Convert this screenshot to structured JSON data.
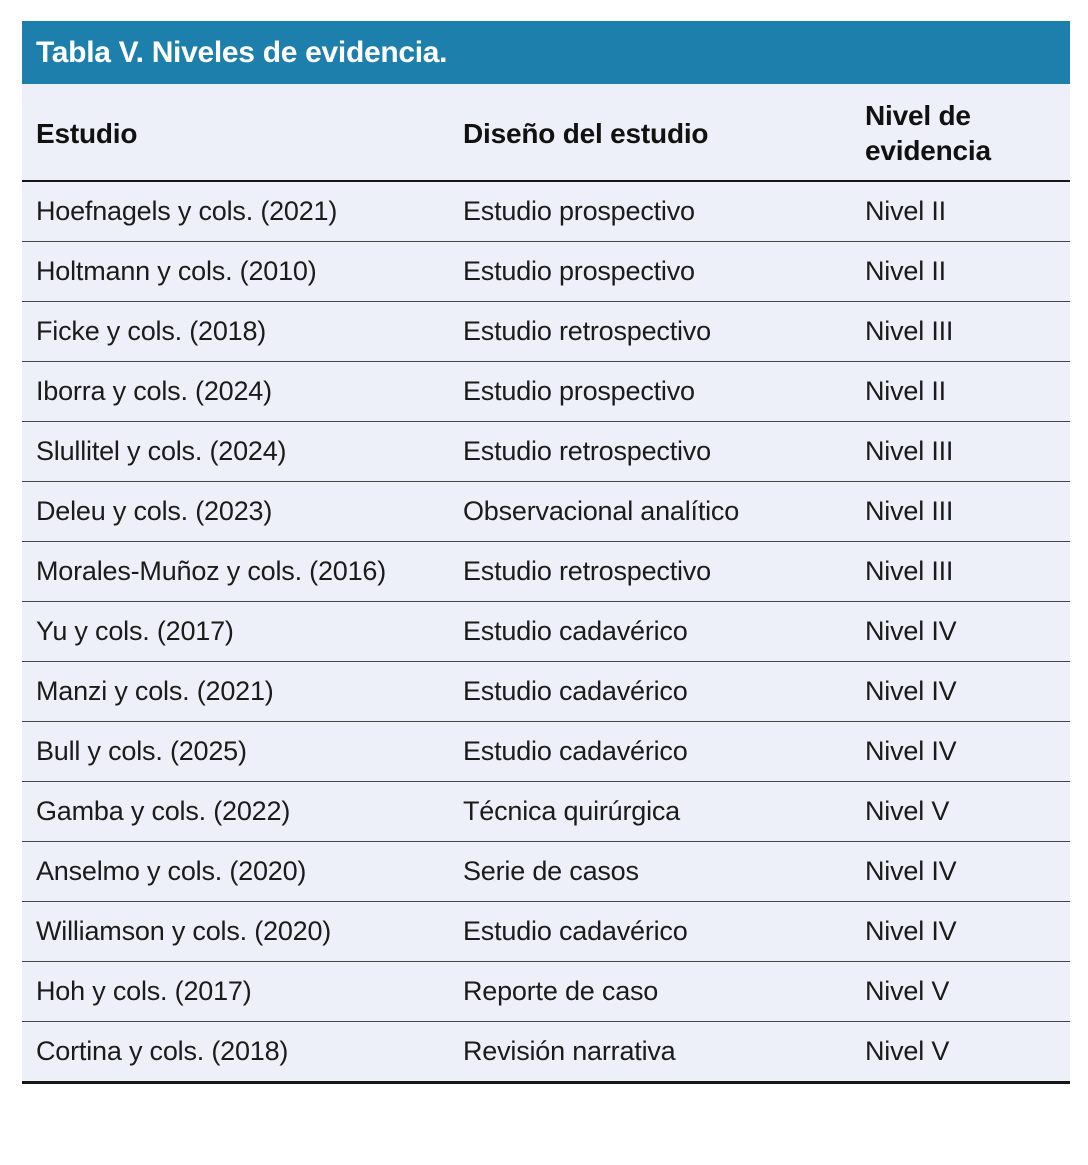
{
  "table": {
    "title": "Tabla V. Niveles de evidencia.",
    "columns": [
      "Estudio",
      "Diseño del estudio",
      "Nivel de evidencia"
    ],
    "rows": [
      [
        "Hoefnagels y cols. (2021)",
        "Estudio prospectivo",
        "Nivel II"
      ],
      [
        "Holtmann y cols. (2010)",
        "Estudio prospectivo",
        "Nivel II"
      ],
      [
        "Ficke y cols. (2018)",
        "Estudio retrospectivo",
        "Nivel III"
      ],
      [
        "Iborra y cols. (2024)",
        "Estudio prospectivo",
        "Nivel II"
      ],
      [
        "Slullitel y cols. (2024)",
        "Estudio retrospectivo",
        "Nivel III"
      ],
      [
        "Deleu y cols. (2023)",
        "Observacional analítico",
        "Nivel III"
      ],
      [
        "Morales-Muñoz y cols. (2016)",
        "Estudio retrospectivo",
        "Nivel III"
      ],
      [
        "Yu y cols. (2017)",
        "Estudio cadavérico",
        "Nivel IV"
      ],
      [
        "Manzi y cols. (2021)",
        "Estudio cadavérico",
        "Nivel IV"
      ],
      [
        "Bull y cols. (2025)",
        "Estudio cadavérico",
        "Nivel IV"
      ],
      [
        "Gamba y cols. (2022)",
        "Técnica quirúrgica",
        "Nivel V"
      ],
      [
        "Anselmo y cols. (2020)",
        "Serie de casos",
        "Nivel IV"
      ],
      [
        "Williamson y cols. (2020)",
        "Estudio cadavérico",
        "Nivel IV"
      ],
      [
        "Hoh y cols. (2017)",
        "Reporte de caso",
        "Nivel V"
      ],
      [
        "Cortina y cols. (2018)",
        "Revisión narrativa",
        "Nivel V"
      ]
    ]
  },
  "colors": {
    "title_bar_bg": "#1d7fac",
    "title_text": "#ffffff",
    "table_bg": "#edf0f8",
    "text": "#1b1b1b",
    "row_divider": "#454545",
    "strong_border": "#161616"
  }
}
